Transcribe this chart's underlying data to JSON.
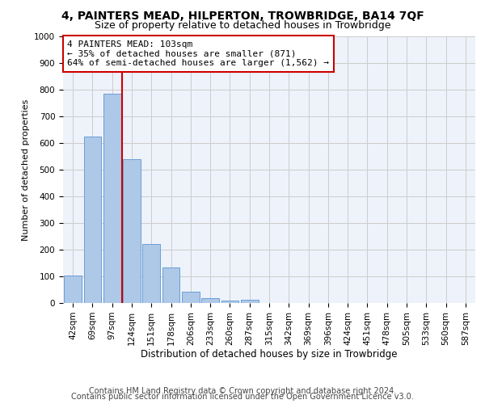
{
  "title": "4, PAINTERS MEAD, HILPERTON, TROWBRIDGE, BA14 7QF",
  "subtitle": "Size of property relative to detached houses in Trowbridge",
  "xlabel": "Distribution of detached houses by size in Trowbridge",
  "ylabel": "Number of detached properties",
  "bar_labels": [
    "42sqm",
    "69sqm",
    "97sqm",
    "124sqm",
    "151sqm",
    "178sqm",
    "206sqm",
    "233sqm",
    "260sqm",
    "287sqm",
    "315sqm",
    "342sqm",
    "369sqm",
    "396sqm",
    "424sqm",
    "451sqm",
    "478sqm",
    "505sqm",
    "533sqm",
    "560sqm",
    "587sqm"
  ],
  "bar_values": [
    103,
    625,
    785,
    540,
    220,
    133,
    42,
    17,
    10,
    12,
    0,
    0,
    0,
    0,
    0,
    0,
    0,
    0,
    0,
    0,
    0
  ],
  "bar_color": "#aec8e8",
  "bar_edgecolor": "#6aa0d4",
  "vline_x": 2.5,
  "vline_color": "#cc0000",
  "annotation_line1": "4 PAINTERS MEAD: 103sqm",
  "annotation_line2": "← 35% of detached houses are smaller (871)",
  "annotation_line3": "64% of semi-detached houses are larger (1,562) →",
  "ylim": [
    0,
    1000
  ],
  "yticks": [
    0,
    100,
    200,
    300,
    400,
    500,
    600,
    700,
    800,
    900,
    1000
  ],
  "grid_color": "#cccccc",
  "bg_color": "#eef2fa",
  "footer_line1": "Contains HM Land Registry data © Crown copyright and database right 2024.",
  "footer_line2": "Contains public sector information licensed under the Open Government Licence v3.0.",
  "title_fontsize": 10,
  "subtitle_fontsize": 9,
  "annotation_fontsize": 8,
  "axis_label_fontsize": 8,
  "tick_fontsize": 7.5,
  "footer_fontsize": 7
}
